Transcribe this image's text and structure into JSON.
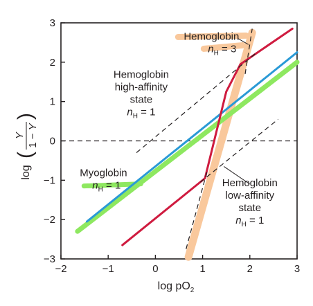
{
  "chart_data": {
    "type": "line",
    "xlabel": "log pO",
    "xlabel_subscript": "2",
    "ylabel": "log (Y / 1 − Y)",
    "xlim": [
      -2,
      3
    ],
    "ylim": [
      -3,
      3
    ],
    "xticks": [
      -2,
      -1,
      0,
      1,
      2,
      3
    ],
    "yticks": [
      -3,
      -2,
      -1,
      0,
      1,
      2,
      3
    ],
    "xtick_labels": [
      "−2",
      "−1",
      "0",
      "1",
      "2",
      "3"
    ],
    "ytick_labels": [
      "−3",
      "−2",
      "−1",
      "0",
      "1",
      "2",
      "3"
    ],
    "grid": false,
    "zero_reference_line": true,
    "series": [
      {
        "name": "Myoglobin",
        "color": "#8ee860",
        "width": 7,
        "x": [
          -1.65,
          3.0
        ],
        "y": [
          -2.3,
          2.0
        ]
      },
      {
        "color": "#2a9ad6",
        "width": 3,
        "x": [
          -1.45,
          3.0
        ],
        "y": [
          -2.05,
          2.25
        ]
      },
      {
        "color": "#cf1b3f",
        "width": 3,
        "x": [
          -0.7,
          1.05,
          1.5,
          1.8,
          2.9
        ],
        "y": [
          -2.65,
          -0.95,
          1.25,
          1.95,
          2.85
        ]
      },
      {
        "name": "Hemoglobin",
        "color": "#f9c89c",
        "width": 11,
        "x": [
          0.7,
          2.05
        ],
        "y": [
          -2.95,
          2.75
        ]
      }
    ],
    "asymptotes": [
      {
        "color": "#231f20",
        "dash": true,
        "x": [
          -0.4,
          2.15
        ],
        "y": [
          -0.3,
          2.25
        ]
      },
      {
        "color": "#231f20",
        "dash": true,
        "x": [
          0.65,
          1.1
        ],
        "y": [
          -2.75,
          -0.75
        ]
      },
      {
        "color": "#231f20",
        "dash": true,
        "x": [
          1.9,
          2.05
        ],
        "y": [
          1.7,
          2.85
        ]
      },
      {
        "color": "#231f20",
        "dash": true,
        "x": [
          0.95,
          2.6
        ],
        "y": [
          -1.05,
          0.55
        ]
      }
    ],
    "annotations": [
      {
        "lines": [
          "Hemoglobin"
        ],
        "n_label": true,
        "n_value": "3",
        "anchor": [
          0.6,
          2.57
        ],
        "highlight": "#f9c89c"
      },
      {
        "lines": [
          "Hemoglobin",
          "high-affinity",
          "state"
        ],
        "n_label": true,
        "n_value": "1",
        "anchor": [
          -0.3,
          1.6
        ]
      },
      {
        "lines": [
          "Myoglobin"
        ],
        "n_label": true,
        "n_value": "1",
        "anchor": [
          -1.6,
          -0.9
        ],
        "highlight": "#8ee860"
      },
      {
        "lines": [
          "Hemoglobin",
          "low-affinity",
          "state"
        ],
        "n_label": true,
        "n_value": "1",
        "anchor": [
          2.0,
          -1.15
        ]
      }
    ],
    "n_symbol": "n",
    "n_subscript": "H",
    "n_equals": " = "
  }
}
